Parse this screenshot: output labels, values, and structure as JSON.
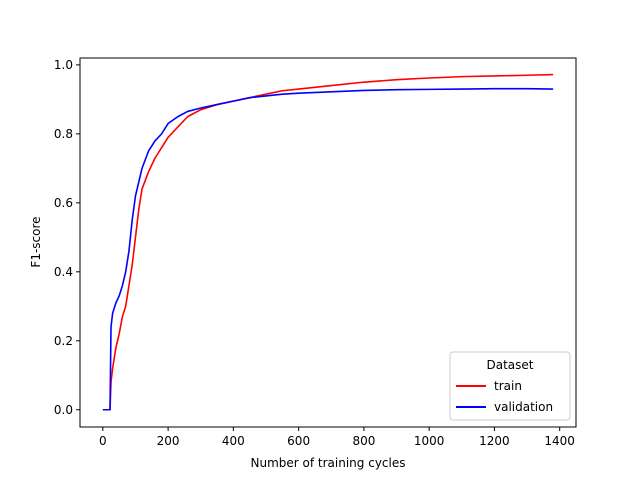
{
  "chart_data": {
    "type": "line",
    "title": "",
    "xlabel": "Number of training cycles",
    "ylabel": "F1-score",
    "xlim": [
      -70,
      1450
    ],
    "ylim": [
      -0.05,
      1.02
    ],
    "xticks": [
      0,
      200,
      400,
      600,
      800,
      1000,
      1200,
      1400
    ],
    "yticks": [
      0.0,
      0.2,
      0.4,
      0.6,
      0.8,
      1.0
    ],
    "xtick_labels": [
      "0",
      "200",
      "400",
      "600",
      "800",
      "1000",
      "1200",
      "1400"
    ],
    "ytick_labels": [
      "0.0",
      "0.2",
      "0.4",
      "0.6",
      "0.8",
      "1.0"
    ],
    "grid": false,
    "legend": {
      "title": "Dataset",
      "location": "lower-right"
    },
    "series": [
      {
        "name": "train",
        "color": "#ff0000",
        "points": [
          [
            0,
            0.0
          ],
          [
            22,
            0.0
          ],
          [
            25,
            0.08
          ],
          [
            30,
            0.12
          ],
          [
            40,
            0.18
          ],
          [
            50,
            0.22
          ],
          [
            60,
            0.27
          ],
          [
            70,
            0.3
          ],
          [
            80,
            0.36
          ],
          [
            90,
            0.42
          ],
          [
            100,
            0.5
          ],
          [
            110,
            0.58
          ],
          [
            120,
            0.64
          ],
          [
            140,
            0.69
          ],
          [
            160,
            0.73
          ],
          [
            180,
            0.76
          ],
          [
            200,
            0.79
          ],
          [
            230,
            0.82
          ],
          [
            260,
            0.85
          ],
          [
            300,
            0.87
          ],
          [
            350,
            0.885
          ],
          [
            400,
            0.895
          ],
          [
            450,
            0.905
          ],
          [
            500,
            0.915
          ],
          [
            550,
            0.925
          ],
          [
            600,
            0.93
          ],
          [
            700,
            0.94
          ],
          [
            800,
            0.95
          ],
          [
            900,
            0.957
          ],
          [
            1000,
            0.962
          ],
          [
            1100,
            0.966
          ],
          [
            1200,
            0.968
          ],
          [
            1300,
            0.97
          ],
          [
            1380,
            0.972
          ]
        ]
      },
      {
        "name": "validation",
        "color": "#0000ff",
        "points": [
          [
            0,
            0.0
          ],
          [
            22,
            0.0
          ],
          [
            25,
            0.24
          ],
          [
            30,
            0.28
          ],
          [
            40,
            0.31
          ],
          [
            50,
            0.33
          ],
          [
            60,
            0.36
          ],
          [
            70,
            0.4
          ],
          [
            80,
            0.46
          ],
          [
            90,
            0.55
          ],
          [
            100,
            0.62
          ],
          [
            110,
            0.66
          ],
          [
            120,
            0.7
          ],
          [
            140,
            0.75
          ],
          [
            160,
            0.78
          ],
          [
            180,
            0.8
          ],
          [
            200,
            0.83
          ],
          [
            230,
            0.85
          ],
          [
            260,
            0.865
          ],
          [
            300,
            0.875
          ],
          [
            350,
            0.885
          ],
          [
            400,
            0.895
          ],
          [
            450,
            0.905
          ],
          [
            500,
            0.91
          ],
          [
            550,
            0.915
          ],
          [
            600,
            0.918
          ],
          [
            700,
            0.922
          ],
          [
            800,
            0.926
          ],
          [
            900,
            0.928
          ],
          [
            1000,
            0.929
          ],
          [
            1100,
            0.93
          ],
          [
            1200,
            0.931
          ],
          [
            1300,
            0.931
          ],
          [
            1380,
            0.93
          ]
        ]
      }
    ]
  }
}
